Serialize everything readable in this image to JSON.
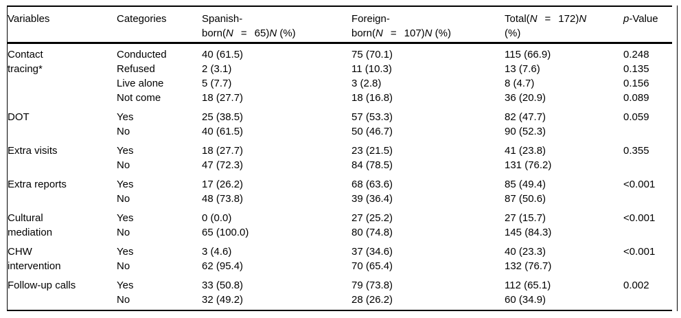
{
  "table": {
    "header": {
      "variables": "Variables",
      "categories": "Categories",
      "spanish_rich": [
        {
          "t": "Spanish-"
        },
        {
          "br": 1
        },
        {
          "t": "born("
        },
        {
          "t": "N",
          "i": 1
        },
        {
          "t": "=",
          "g": 1
        },
        {
          "t": "65)"
        },
        {
          "t": "N",
          "i": 1
        },
        {
          "t": " (%)"
        }
      ],
      "foreign_rich": [
        {
          "t": "Foreign-"
        },
        {
          "br": 1
        },
        {
          "t": "born("
        },
        {
          "t": "N",
          "i": 1
        },
        {
          "t": "=",
          "g": 1
        },
        {
          "t": "107)"
        },
        {
          "t": "N",
          "i": 1
        },
        {
          "t": " (%)"
        }
      ],
      "total_rich": [
        {
          "t": "Total("
        },
        {
          "t": "N",
          "i": 1
        },
        {
          "t": "=",
          "g": 1
        },
        {
          "t": "172)"
        },
        {
          "t": "N",
          "i": 1
        },
        {
          "br": 1
        },
        {
          "t": "(%)"
        }
      ],
      "pvalue_rich": [
        {
          "t": "p",
          "i": 1
        },
        {
          "t": "-Value"
        }
      ]
    },
    "groups": [
      {
        "variable_rich": [
          {
            "t": "Contact"
          },
          {
            "br": 1
          },
          {
            "t": "tracing*"
          }
        ],
        "rows": [
          {
            "category": "Conducted",
            "spanish": "40 (61.5)",
            "foreign": "75 (70.1)",
            "total": "115 (66.9)",
            "p": "0.248"
          },
          {
            "category": "Refused",
            "spanish": "2 (3.1)",
            "foreign": "11 (10.3)",
            "total": "13 (7.6)",
            "p": "0.135"
          },
          {
            "category": "Live alone",
            "spanish": "5 (7.7)",
            "foreign": "3 (2.8)",
            "total": "8 (4.7)",
            "p": "0.156"
          },
          {
            "category": "Not come",
            "spanish": "18 (27.7)",
            "foreign": "18 (16.8)",
            "total": "36 (20.9)",
            "p": "0.089"
          }
        ]
      },
      {
        "variable_rich": [
          {
            "t": "DOT"
          }
        ],
        "p": "0.059",
        "rows": [
          {
            "category": "Yes",
            "spanish": "25 (38.5)",
            "foreign": "57 (53.3)",
            "total": "82 (47.7)"
          },
          {
            "category": "No",
            "spanish": "40 (61.5)",
            "foreign": "50 (46.7)",
            "total": "90 (52.3)"
          }
        ]
      },
      {
        "variable_rich": [
          {
            "t": "Extra visits"
          }
        ],
        "p": "0.355",
        "rows": [
          {
            "category": "Yes",
            "spanish": "18 (27.7)",
            "foreign": "23 (21.5)",
            "total": "41 (23.8)"
          },
          {
            "category": "No",
            "spanish": "47 (72.3)",
            "foreign": "84 (78.5)",
            "total": "131 (76.2)"
          }
        ]
      },
      {
        "variable_rich": [
          {
            "t": "Extra reports"
          }
        ],
        "p": "<0.001",
        "rows": [
          {
            "category": "Yes",
            "spanish": "17 (26.2)",
            "foreign": "68 (63.6)",
            "total": "85 (49.4)"
          },
          {
            "category": "No",
            "spanish": "48 (73.8)",
            "foreign": "39 (36.4)",
            "total": "87 (50.6)"
          }
        ]
      },
      {
        "variable_rich": [
          {
            "t": "Cultural"
          },
          {
            "br": 1
          },
          {
            "t": "mediation"
          }
        ],
        "p": "<0.001",
        "rows": [
          {
            "category": "Yes",
            "spanish": "0 (0.0)",
            "foreign": "27 (25.2)",
            "total": "27 (15.7)"
          },
          {
            "category": "No",
            "spanish": "65 (100.0)",
            "foreign": "80 (74.8)",
            "total": "145 (84.3)"
          }
        ]
      },
      {
        "variable_rich": [
          {
            "t": "CHW"
          },
          {
            "br": 1
          },
          {
            "t": "intervention"
          }
        ],
        "p": "<0.001",
        "rows": [
          {
            "category": "Yes",
            "spanish": "3 (4.6)",
            "foreign": "37 (34.6)",
            "total": "40 (23.3)"
          },
          {
            "category": "No",
            "spanish": "62 (95.4)",
            "foreign": "70 (65.4)",
            "total": "132 (76.7)"
          }
        ]
      },
      {
        "variable_rich": [
          {
            "t": "Follow-up calls"
          }
        ],
        "p": "0.002",
        "rows": [
          {
            "category": "Yes",
            "spanish": "33 (50.8)",
            "foreign": "79 (73.8)",
            "total": "112 (65.1)"
          },
          {
            "category": "No",
            "spanish": "32 (49.2)",
            "foreign": "28 (26.2)",
            "total": "60 (34.9)"
          }
        ]
      }
    ]
  }
}
